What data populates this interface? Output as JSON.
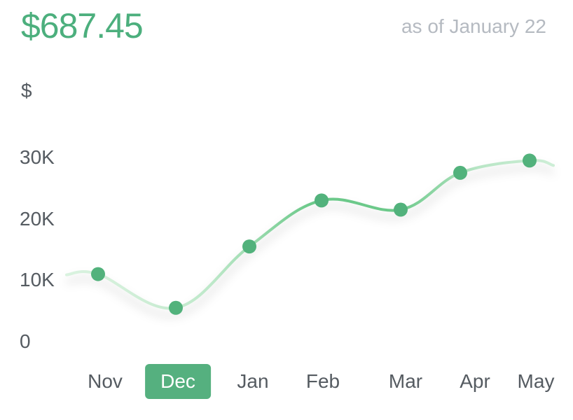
{
  "header": {
    "amount": "$687.45",
    "as_of": "as of January 22"
  },
  "colors": {
    "accent": "#4caf7d",
    "line_strong": "#6cc98a",
    "line_faint": "#cdeed6",
    "marker": "#52b27c",
    "active_tab": "#55b07f"
  },
  "chart_data": {
    "type": "line",
    "title": "",
    "xlabel": "",
    "ylabel": "$",
    "categories": [
      "Nov",
      "Dec",
      "Jan",
      "Feb",
      "Mar",
      "Apr",
      "May"
    ],
    "values": [
      11000,
      5500,
      15500,
      23000,
      21500,
      27500,
      29500
    ],
    "yticks": [
      {
        "value": 0,
        "label": "0"
      },
      {
        "value": 10000,
        "label": "10K"
      },
      {
        "value": 20000,
        "label": "20K"
      },
      {
        "value": 30000,
        "label": "30K"
      }
    ],
    "ylim": [
      0,
      30000
    ],
    "selected_category": "Dec",
    "grid": false,
    "legend": "none"
  }
}
